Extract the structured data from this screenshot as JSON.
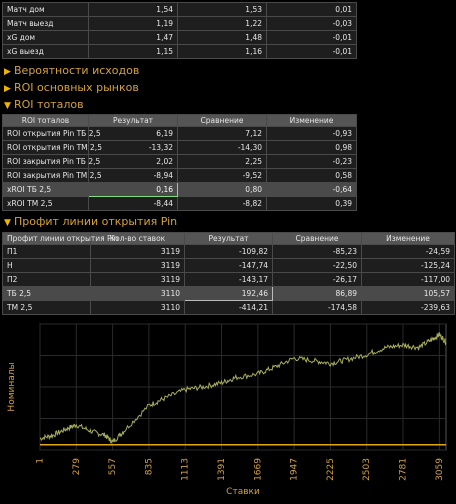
{
  "top_table": {
    "rows": [
      {
        "label": "Матч дом",
        "v1": "1,54",
        "v2": "1,53",
        "v3": "0,01"
      },
      {
        "label": "Матч выезд",
        "v1": "1,19",
        "v2": "1,22",
        "v3": "-0,03"
      },
      {
        "label": "xG дом",
        "v1": "1,47",
        "v2": "1,48",
        "v3": "-0,01"
      },
      {
        "label": "xG выезд",
        "v1": "1,15",
        "v2": "1,16",
        "v3": "-0,01"
      }
    ]
  },
  "sections": {
    "outcomes": "Вероятности исходов",
    "main_markets": "ROI основных рынков",
    "totals": "ROI тоталов",
    "pin_profit": "Профит линии открытия Pin"
  },
  "roi_table": {
    "headers": [
      "ROI тоталов",
      "Результат",
      "Сравнение",
      "Изменение"
    ],
    "rows": [
      {
        "label": "ROI открытия Pin ТБ 2,5",
        "v1": "6,19",
        "v2": "7,12",
        "v3": "-0,93"
      },
      {
        "label": "ROI открытия Pin ТМ 2,5",
        "v1": "-13,32",
        "v2": "-14,30",
        "v3": "0,98"
      },
      {
        "label": "ROI закрытия Pin ТБ 2,5",
        "v1": "2,02",
        "v2": "2,25",
        "v3": "-0,23"
      },
      {
        "label": "ROI закрытия Pin ТМ 2,5",
        "v1": "-8,94",
        "v2": "-9,52",
        "v3": "0,58"
      },
      {
        "label": "xROI ТБ 2,5",
        "v1": "0,16",
        "v2": "0,80",
        "v3": "-0,64"
      },
      {
        "label": "xROI ТМ 2,5",
        "v1": "-8,44",
        "v2": "-8,82",
        "v3": "0,39"
      }
    ]
  },
  "pin_table": {
    "headers": [
      "Профит линии открытия Pin",
      "Кол-во ставок",
      "Результат",
      "Сравнение",
      "Изменение"
    ],
    "rows": [
      {
        "label": "П1",
        "n": "3119",
        "v1": "-109,82",
        "v2": "-85,23",
        "v3": "-24,59"
      },
      {
        "label": "Н",
        "n": "3119",
        "v1": "-147,74",
        "v2": "-22,50",
        "v3": "-125,24"
      },
      {
        "label": "П2",
        "n": "3119",
        "v1": "-143,17",
        "v2": "-26,17",
        "v3": "-117,00"
      },
      {
        "label": "ТБ 2,5",
        "n": "3110",
        "v1": "192,46",
        "v2": "86,89",
        "v3": "105,57"
      },
      {
        "label": "ТМ 2,5",
        "n": "3110",
        "v1": "-414,21",
        "v2": "-174,58",
        "v3": "-239,63"
      }
    ]
  },
  "colors": {
    "accent": "#d4a23c",
    "series": "#a8ad5a",
    "zero_line": "#e0a800"
  },
  "chart_data": {
    "type": "line",
    "xlabel": "Ставки",
    "ylabel": "Номиналы",
    "xticks": [
      1,
      279,
      557,
      835,
      1113,
      1391,
      1669,
      1947,
      2225,
      2503,
      2781,
      3059
    ],
    "xlim": [
      1,
      3110
    ],
    "ylim": [
      -10,
      230
    ],
    "grid": true,
    "series": [
      {
        "name": "",
        "x": [
          1,
          100,
          200,
          279,
          400,
          500,
          557,
          650,
          835,
          950,
          1113,
          1250,
          1391,
          1500,
          1669,
          1800,
          1947,
          2100,
          2225,
          2350,
          2503,
          2650,
          2781,
          2900,
          3000,
          3059,
          3110
        ],
        "y": [
          12,
          18,
          30,
          38,
          25,
          18,
          5,
          28,
          75,
          88,
          105,
          110,
          118,
          128,
          135,
          148,
          165,
          160,
          155,
          162,
          172,
          185,
          190,
          185,
          200,
          210,
          195
        ]
      },
      {
        "name": "",
        "x": [
          1,
          3110
        ],
        "y": [
          0,
          0
        ]
      }
    ]
  }
}
